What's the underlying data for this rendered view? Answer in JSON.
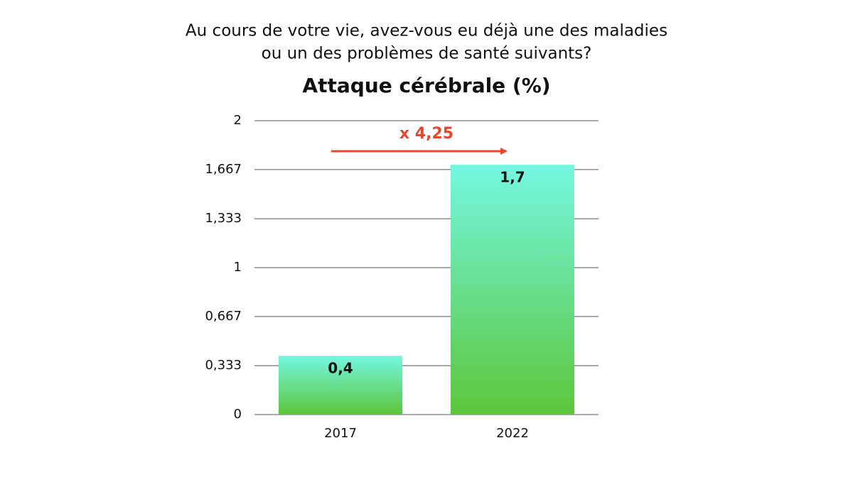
{
  "chart_data": {
    "type": "bar",
    "subtitle": [
      "Au cours de votre vie, avez-vous eu déjà une des maladies",
      "ou un des problèmes de santé suivants?"
    ],
    "title": "Attaque cérébrale (%)",
    "categories": [
      "2017",
      "2022"
    ],
    "values": [
      0.4,
      1.7
    ],
    "value_labels": [
      "0,4",
      "1,7"
    ],
    "colors": [
      "#74f7e2",
      "#5cc63a"
    ],
    "annotation": "x 4,25",
    "annotation_color": "#e8452c",
    "ylim": [
      0,
      2
    ],
    "yticks": [
      0,
      {
        "value": 0.333,
        "label": "0,333"
      },
      {
        "value": 0.667,
        "label": "0,667"
      },
      1,
      {
        "value": 1.333,
        "label": "1,333"
      },
      {
        "value": 1.667,
        "label": "1,667"
      },
      2
    ],
    "grid": true
  }
}
